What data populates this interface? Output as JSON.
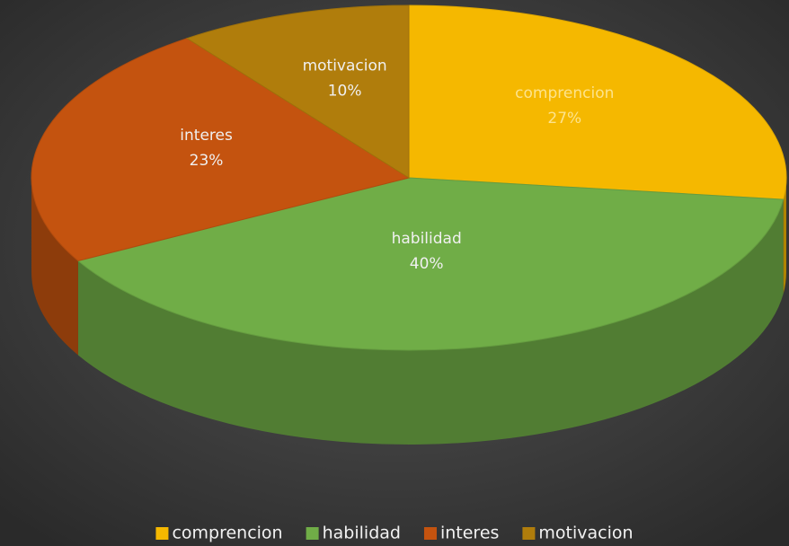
{
  "chart_data": {
    "type": "pie3d",
    "categories": [
      "comprencion",
      "habilidad",
      "interes",
      "motivacion"
    ],
    "values": [
      27,
      40,
      23,
      10
    ],
    "value_labels": [
      "27%",
      "40%",
      "23%",
      "10%"
    ],
    "colors": [
      "#f5b800",
      "#70ad47",
      "#c4530f",
      "#b07d0c"
    ],
    "legend": "bottom"
  }
}
